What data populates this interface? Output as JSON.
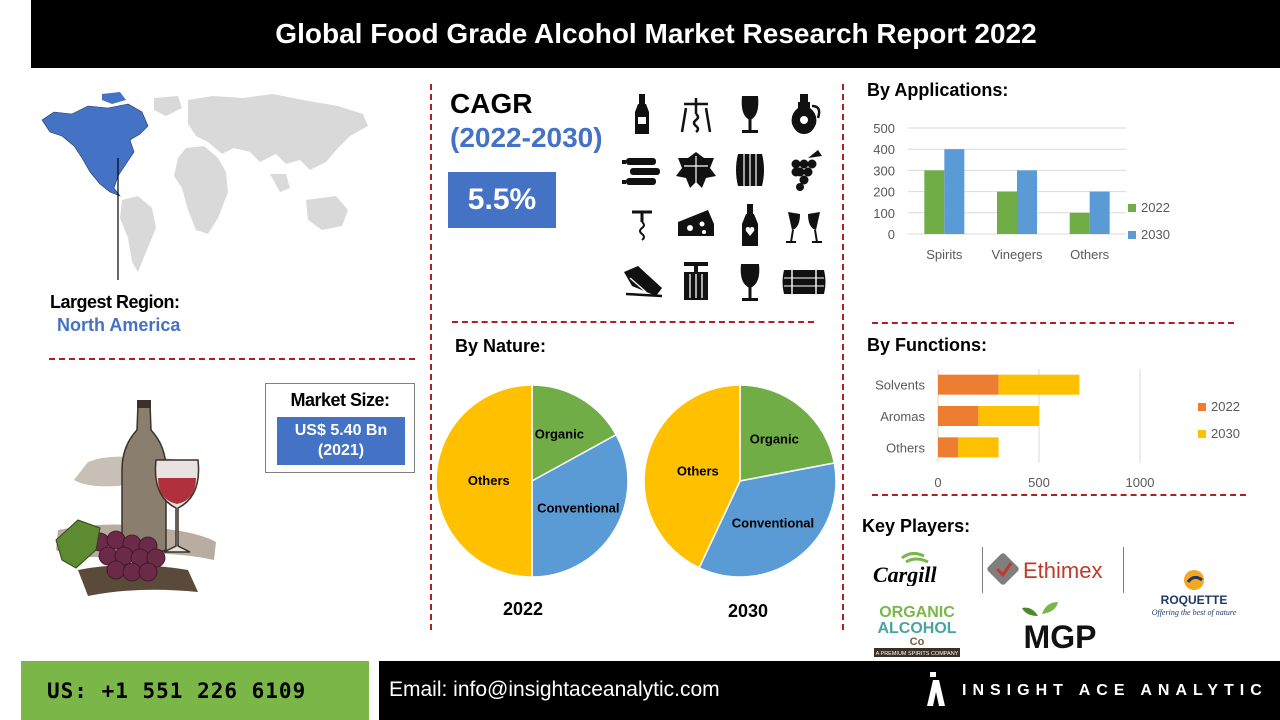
{
  "title": "Global Food Grade Alcohol Market Research Report 2022",
  "region": {
    "label": "Largest Region:",
    "value": "North America"
  },
  "market_size": {
    "label": "Market Size:",
    "value_line1": "US$ 5.40 Bn",
    "value_line2": "(2021)"
  },
  "cagr": {
    "label": "CAGR",
    "years": "(2022-2030)",
    "value": "5.5%"
  },
  "icons": [
    "wine-bottle-icon",
    "corkscrew-icon",
    "wine-glass-icon",
    "wine-jug-icon",
    "wine-rack-icon",
    "grape-leaf-icon",
    "barrel-icon",
    "grapes-icon",
    "wall-corkscrew-icon",
    "cheese-icon",
    "heart-bottle-icon",
    "toasting-glasses-icon",
    "bottle-cradle-icon",
    "wine-press-icon",
    "full-wine-glass-icon",
    "side-barrel-icon"
  ],
  "sections": {
    "applications": "By Applications:",
    "nature": "By Nature:",
    "functions": "By Functions:",
    "players": "Key Players:"
  },
  "chart_data": [
    {
      "type": "bar",
      "categories": [
        "Spirits",
        "Vinegers",
        "Others"
      ],
      "series": [
        {
          "name": "2022",
          "values": [
            300,
            200,
            100
          ],
          "color": "#70ad47"
        },
        {
          "name": "2030",
          "values": [
            400,
            300,
            200
          ],
          "color": "#5b9bd5"
        }
      ],
      "ylim": [
        0,
        500
      ],
      "yticks": [
        0,
        100,
        200,
        300,
        400,
        500
      ],
      "grid": true,
      "legend": "right"
    },
    {
      "type": "pie",
      "label": "2022",
      "slices": [
        {
          "name": "Organic",
          "value": 17,
          "color": "#70ad47"
        },
        {
          "name": "Conventional",
          "value": 33,
          "color": "#5b9bd5"
        },
        {
          "name": "Others",
          "value": 50,
          "color": "#ffc000"
        }
      ]
    },
    {
      "type": "pie",
      "label": "2030",
      "slices": [
        {
          "name": "Organic",
          "value": 22,
          "color": "#70ad47"
        },
        {
          "name": "Conventional",
          "value": 35,
          "color": "#5b9bd5"
        },
        {
          "name": "Others",
          "value": 43,
          "color": "#ffc000"
        }
      ]
    },
    {
      "type": "bar",
      "orientation": "horizontal",
      "stacked": true,
      "categories": [
        "Solvents",
        "Aromas",
        "Others"
      ],
      "series": [
        {
          "name": "2022",
          "values": [
            300,
            200,
            100
          ],
          "color": "#ed7d31"
        },
        {
          "name": "2030",
          "values": [
            400,
            300,
            200
          ],
          "color": "#ffc000"
        }
      ],
      "xlim": [
        0,
        1000
      ],
      "xticks": [
        0,
        500,
        1000
      ],
      "grid": true,
      "legend": "right"
    }
  ],
  "players": {
    "cargill": "Cargill",
    "ethimex": "Ethimex",
    "roquette": "ROQUETTE",
    "roquette_tagline": "Offering the best of nature",
    "organic_line1": "ORGANIC",
    "organic_line2": "ALCOHOL",
    "organic_line3": "Co",
    "organic_tagline": "A PREMIUM SPIRITS COMPANY",
    "mgp": "MGP"
  },
  "footer": {
    "phone": "US: +1 551 226 6109",
    "email": "Email: info@insightaceanalytic.com",
    "brand": "INSIGHT ACE ANALYTIC"
  }
}
